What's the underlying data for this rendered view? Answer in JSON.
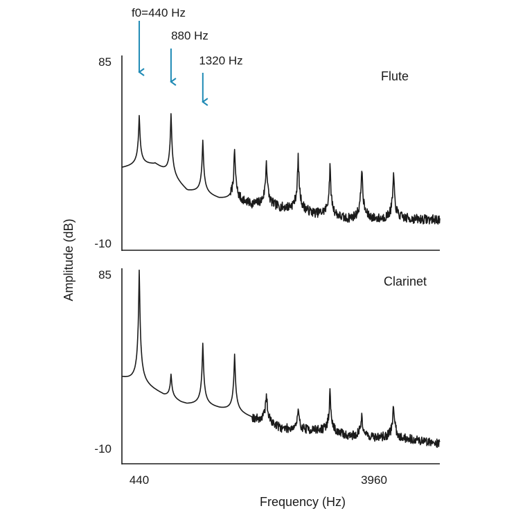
{
  "chart_data": [
    {
      "type": "line",
      "panel_label": "Flute",
      "xlabel": "Frequency (Hz)",
      "ylabel": "Amplitude (dB)",
      "ylim": [
        -10,
        85
      ],
      "xlim": [
        200,
        4600
      ],
      "y_ticks": [
        85,
        -10
      ],
      "annotations": [
        "f0=440 Hz",
        "880 Hz",
        "1320 Hz"
      ],
      "annotation_x": [
        440,
        880,
        1320
      ],
      "annotation_color": "#1f8ab5",
      "peaks": [
        {
          "x": 440,
          "y": 57
        },
        {
          "x": 880,
          "y": 58
        },
        {
          "x": 1320,
          "y": 44
        },
        {
          "x": 1760,
          "y": 39
        },
        {
          "x": 2200,
          "y": 34
        },
        {
          "x": 2640,
          "y": 35
        },
        {
          "x": 3080,
          "y": 30
        },
        {
          "x": 3520,
          "y": 30
        },
        {
          "x": 3960,
          "y": 26
        }
      ],
      "valleys": [
        {
          "x": 200,
          "y": 29
        },
        {
          "x": 660,
          "y": 31
        },
        {
          "x": 1100,
          "y": 17
        },
        {
          "x": 1540,
          "y": 13
        },
        {
          "x": 1980,
          "y": 10
        },
        {
          "x": 2420,
          "y": 8
        },
        {
          "x": 2860,
          "y": 5
        },
        {
          "x": 3300,
          "y": 2
        },
        {
          "x": 3740,
          "y": 2
        },
        {
          "x": 4180,
          "y": 2
        },
        {
          "x": 4600,
          "y": 2
        }
      ],
      "noise_start": 1700
    },
    {
      "type": "line",
      "panel_label": "Clarinet",
      "xlabel": "Frequency (Hz)",
      "ylabel": "Amplitude (dB)",
      "ylim": [
        -10,
        85
      ],
      "xlim": [
        200,
        4600
      ],
      "y_ticks": [
        85,
        -10
      ],
      "x_ticks": [
        440,
        3960
      ],
      "peaks": [
        {
          "x": 440,
          "y": 87
        },
        {
          "x": 880,
          "y": 30
        },
        {
          "x": 1320,
          "y": 47
        },
        {
          "x": 1760,
          "y": 41
        },
        {
          "x": 2200,
          "y": 20
        },
        {
          "x": 2640,
          "y": 10
        },
        {
          "x": 3080,
          "y": 20
        },
        {
          "x": 3520,
          "y": 8
        },
        {
          "x": 3960,
          "y": 14
        }
      ],
      "valleys": [
        {
          "x": 200,
          "y": 27
        },
        {
          "x": 660,
          "y": 20
        },
        {
          "x": 1100,
          "y": 13
        },
        {
          "x": 1540,
          "y": 11
        },
        {
          "x": 1980,
          "y": 6
        },
        {
          "x": 2420,
          "y": 0
        },
        {
          "x": 2860,
          "y": -1
        },
        {
          "x": 3300,
          "y": -4
        },
        {
          "x": 3740,
          "y": -5
        },
        {
          "x": 4180,
          "y": -6
        },
        {
          "x": 4600,
          "y": -8
        }
      ],
      "noise_start": 2000
    }
  ]
}
